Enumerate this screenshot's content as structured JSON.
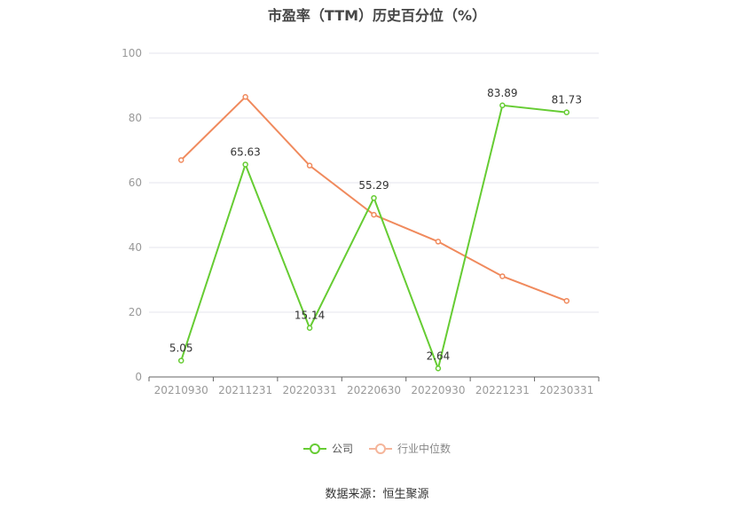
{
  "title": "市盈率（TTM）历史百分位（%）",
  "source": "数据来源：恒生聚源",
  "colors": {
    "company": "#66cc33",
    "industry": "#f08a5d",
    "axis": "#999999",
    "grid": "#e6e6ee"
  },
  "chart_data": {
    "type": "line",
    "title": "市盈率（TTM）历史百分位（%）",
    "categories": [
      "20210930",
      "20211231",
      "20220331",
      "20220630",
      "20220930",
      "20221231",
      "20230331"
    ],
    "series": [
      {
        "name": "公司",
        "color": "#66cc33",
        "values": [
          5.05,
          65.63,
          15.14,
          55.29,
          2.64,
          83.89,
          81.73
        ],
        "show_labels": true
      },
      {
        "name": "行业中位数",
        "color": "#f08a5d",
        "values": [
          67,
          86.5,
          65.3,
          50.1,
          41.8,
          31.1,
          23.5
        ],
        "show_labels": false
      }
    ],
    "ylim": [
      0,
      100
    ],
    "yticks": [
      0,
      20,
      40,
      60,
      80,
      100
    ],
    "grid": true,
    "legend": "bottom-center"
  }
}
